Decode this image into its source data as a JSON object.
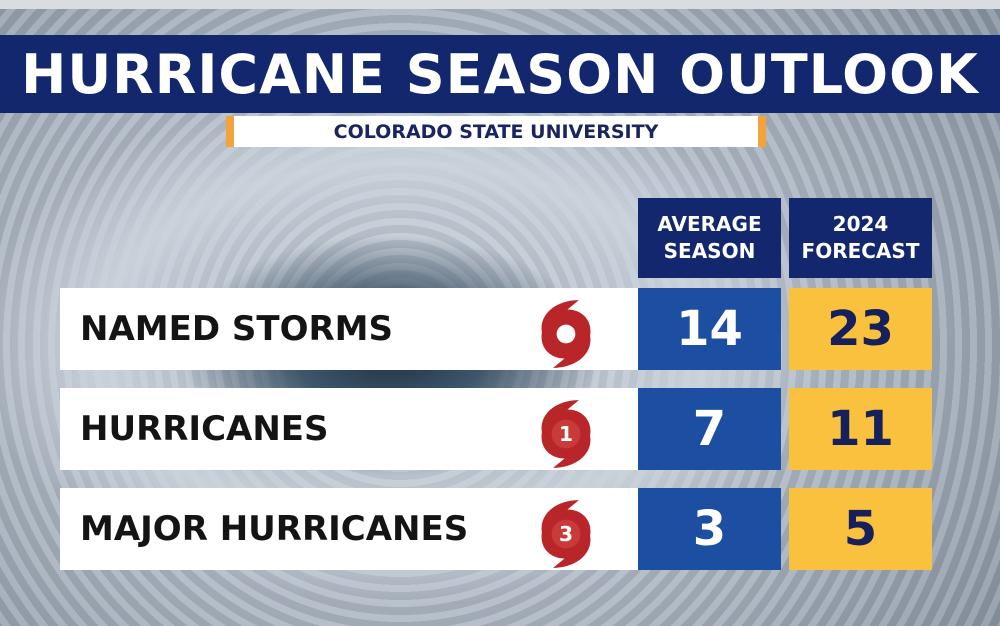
{
  "title": "HURRICANE SEASON OUTLOOK",
  "subtitle": "COLORADO STATE UNIVERSITY",
  "columns": {
    "average": [
      "AVERAGE",
      "SEASON"
    ],
    "forecast": [
      "2024",
      "FORECAST"
    ]
  },
  "rows": [
    {
      "label": "NAMED STORMS",
      "icon": "tropical-storm-icon",
      "icon_text": "",
      "average": "14",
      "forecast": "23"
    },
    {
      "label": "HURRICANES",
      "icon": "hurricane-category-1-icon",
      "icon_text": "1",
      "average": "7",
      "forecast": "11"
    },
    {
      "label": "MAJOR HURRICANES",
      "icon": "hurricane-category-3-icon",
      "icon_text": "3",
      "average": "3",
      "forecast": "5"
    }
  ],
  "colors": {
    "navy": "#13276e",
    "blue": "#1c4ea1",
    "gold": "#fac13e",
    "orange": "#f4a23c",
    "icon_red": "#b8262a"
  }
}
